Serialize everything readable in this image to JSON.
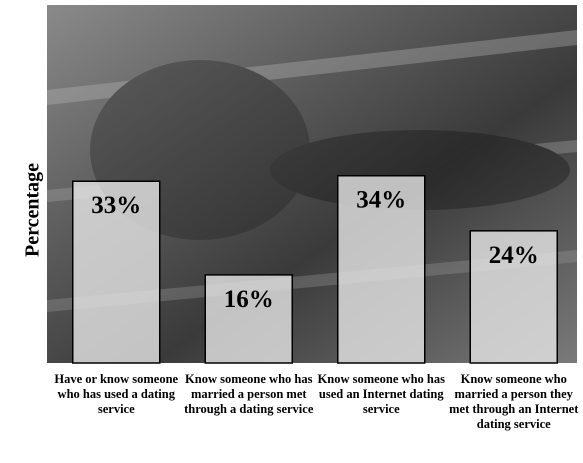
{
  "chart_data": {
    "type": "bar",
    "y_label": "Percentage",
    "categories": [
      "Have or know someone who has used a dating service",
      "Know someone who has married a person met through a dating service",
      "Know someone who has used an Internet dating service",
      "Know someone who married a person they met through an Internet dating service"
    ],
    "values": [
      33,
      16,
      34,
      24
    ],
    "value_labels": [
      "33%",
      "16%",
      "34%",
      "24%"
    ],
    "color": "#e6e6e6",
    "ylim": [
      0,
      65
    ]
  }
}
